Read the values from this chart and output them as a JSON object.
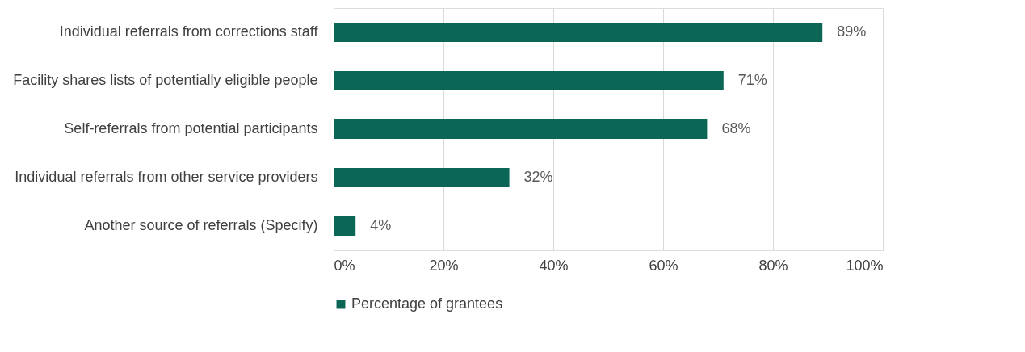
{
  "chart_data": {
    "type": "bar",
    "orientation": "horizontal",
    "categories": [
      "Individual referrals from corrections staff",
      "Facility shares lists of potentially eligible people",
      "Self-referrals from potential participants",
      "Individual referrals from other service providers",
      "Another source of referrals (Specify)"
    ],
    "series": [
      {
        "name": "Percentage of grantees",
        "color": "#0b6656",
        "values": [
          89,
          71,
          68,
          32,
          4
        ],
        "value_labels": [
          "89%",
          "71%",
          "68%",
          "32%",
          "4%"
        ]
      }
    ],
    "xlim": [
      0,
      100
    ],
    "xticks": [
      {
        "value": 0,
        "label": "0%"
      },
      {
        "value": 20,
        "label": "20%"
      },
      {
        "value": 40,
        "label": "40%"
      },
      {
        "value": 60,
        "label": "60%"
      },
      {
        "value": 80,
        "label": "80%"
      },
      {
        "value": 100,
        "label": "100%"
      }
    ],
    "grid": "x",
    "legend": "bottom"
  }
}
